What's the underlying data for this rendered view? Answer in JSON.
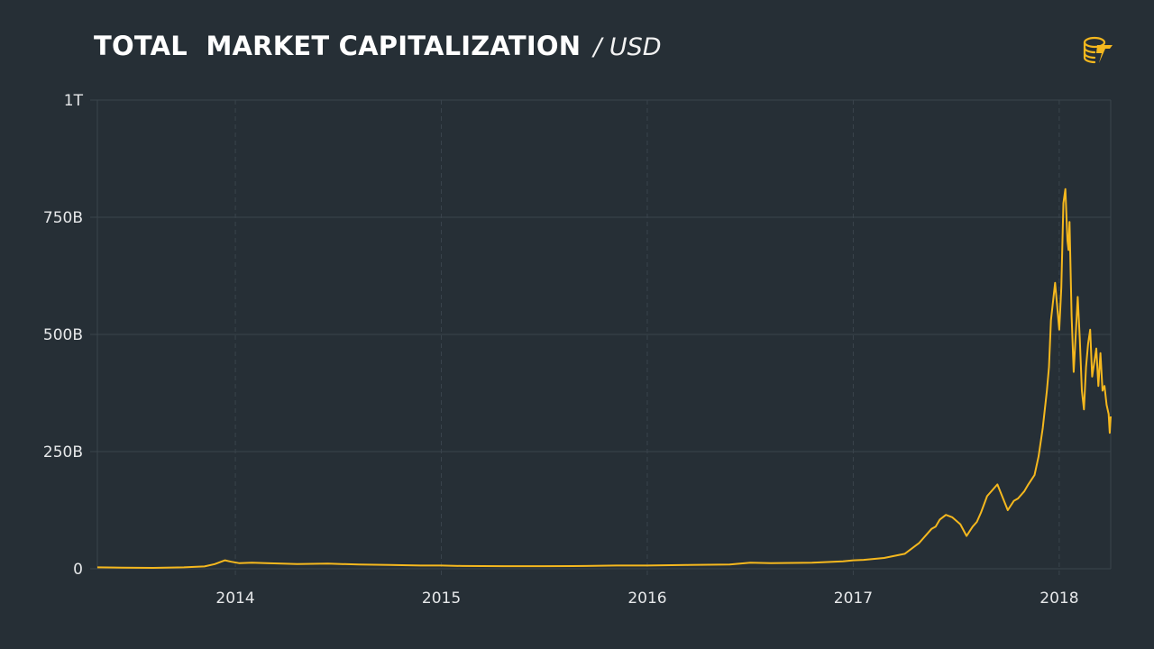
{
  "header": {
    "title": "TOTAL  MARKET CAPITALIZATION",
    "unit": "/ USD"
  },
  "logo": {
    "icon": "coin-stack-lightning-icon",
    "color": "#f5b81e"
  },
  "colors": {
    "background": "#262f36",
    "line": "#f5b81e",
    "grid": "#3a444c",
    "text": "#e6e8ea"
  },
  "chart_data": {
    "type": "line",
    "title": "TOTAL  MARKET CAPITALIZATION",
    "subtitle": "/ USD",
    "xlabel": "",
    "ylabel": "",
    "xlim": [
      2013.33,
      2018.25
    ],
    "ylim": [
      0,
      1000
    ],
    "y_unit": "billions USD",
    "x_ticks": [
      {
        "value": 2014,
        "label": "2014"
      },
      {
        "value": 2015,
        "label": "2015"
      },
      {
        "value": 2016,
        "label": "2016"
      },
      {
        "value": 2017,
        "label": "2017"
      },
      {
        "value": 2018,
        "label": "2018"
      }
    ],
    "y_ticks": [
      {
        "value": 0,
        "label": "0"
      },
      {
        "value": 250,
        "label": "250B"
      },
      {
        "value": 500,
        "label": "500B"
      },
      {
        "value": 750,
        "label": "750B"
      },
      {
        "value": 1000,
        "label": "1T"
      }
    ],
    "grid": true,
    "legend": "none",
    "series": [
      {
        "x": [
          2013.33,
          2013.45,
          2013.6,
          2013.75,
          2013.85,
          2013.9,
          2013.95,
          2013.98,
          2014.02,
          2014.08,
          2014.15,
          2014.3,
          2014.45,
          2014.6,
          2014.75,
          2014.9,
          2015.0,
          2015.1,
          2015.3,
          2015.5,
          2015.7,
          2015.85,
          2016.0,
          2016.2,
          2016.4,
          2016.5,
          2016.6,
          2016.8,
          2016.95,
          2017.0,
          2017.05,
          2017.15,
          2017.25,
          2017.32,
          2017.38,
          2017.4,
          2017.42,
          2017.45,
          2017.48,
          2017.52,
          2017.55,
          2017.58,
          2017.6,
          2017.62,
          2017.65,
          2017.7,
          2017.75,
          2017.78,
          2017.8,
          2017.83,
          2017.85,
          2017.88,
          2017.9,
          2017.92,
          2017.94,
          2017.95,
          2017.96,
          2017.98,
          2017.99,
          2018.0,
          2018.01,
          2018.02,
          2018.03,
          2018.04,
          2018.045,
          2018.05,
          2018.06,
          2018.07,
          2018.08,
          2018.09,
          2018.1,
          2018.11,
          2018.12,
          2018.13,
          2018.14,
          2018.15,
          2018.16,
          2018.17,
          2018.18,
          2018.19,
          2018.2,
          2018.21,
          2018.22,
          2018.23,
          2018.24,
          2018.245,
          2018.25
        ],
        "y": [
          3,
          2.5,
          2,
          3,
          5,
          10,
          18,
          15,
          12,
          13,
          12,
          10,
          11,
          9,
          8,
          7,
          7,
          6,
          5.5,
          5.5,
          6,
          7,
          7,
          8,
          9,
          13,
          12,
          13,
          16,
          18,
          19,
          23,
          32,
          55,
          85,
          90,
          105,
          115,
          110,
          95,
          70,
          90,
          100,
          120,
          155,
          180,
          125,
          145,
          150,
          165,
          180,
          200,
          240,
          300,
          380,
          430,
          530,
          610,
          560,
          510,
          600,
          780,
          810,
          700,
          680,
          740,
          540,
          420,
          500,
          580,
          490,
          380,
          340,
          430,
          480,
          510,
          410,
          440,
          470,
          390,
          460,
          380,
          390,
          350,
          330,
          290,
          325
        ]
      }
    ]
  }
}
